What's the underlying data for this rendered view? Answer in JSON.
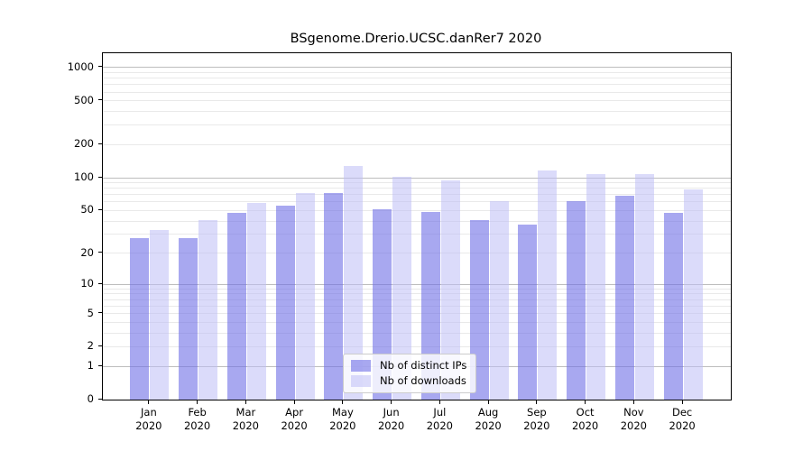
{
  "chart_data": {
    "type": "bar",
    "title": "BSgenome.Drerio.UCSC.danRer7 2020",
    "categories": [
      "Jan 2020",
      "Feb 2020",
      "Mar 2020",
      "Apr 2020",
      "May 2020",
      "Jun 2020",
      "Jul 2020",
      "Aug 2020",
      "Sep 2020",
      "Oct 2020",
      "Nov 2020",
      "Dec 2020"
    ],
    "series": [
      {
        "name": "Nb of distinct IPs",
        "color": "#6e6ee6",
        "alpha": 0.6,
        "values": [
          28,
          28,
          48,
          56,
          73,
          51,
          49,
          41,
          37,
          61,
          68,
          48
        ]
      },
      {
        "name": "Nb of downloads",
        "color": "#bebef5",
        "alpha": 0.55,
        "values": [
          33,
          41,
          59,
          72,
          127,
          102,
          95,
          61,
          117,
          108,
          108,
          78
        ]
      }
    ],
    "yscale": "log10(1+x)",
    "ylim": [
      0,
      1346
    ],
    "yticks": [
      1000,
      500,
      200,
      100,
      50,
      20,
      10,
      5,
      2,
      1,
      0
    ],
    "grid": {
      "major": [
        1,
        10,
        100,
        1000
      ],
      "minor": [
        2,
        3,
        4,
        5,
        6,
        7,
        8,
        9,
        20,
        30,
        40,
        50,
        60,
        70,
        80,
        90,
        200,
        300,
        400,
        500,
        600,
        700,
        800,
        900
      ]
    },
    "legend_position": "lower center"
  },
  "colors": {
    "background": "#ffffff",
    "axis": "#000000",
    "grid_major": "#bdbdbd",
    "grid_minor": "#e9e9e9",
    "legend_border": "#cccccc"
  }
}
